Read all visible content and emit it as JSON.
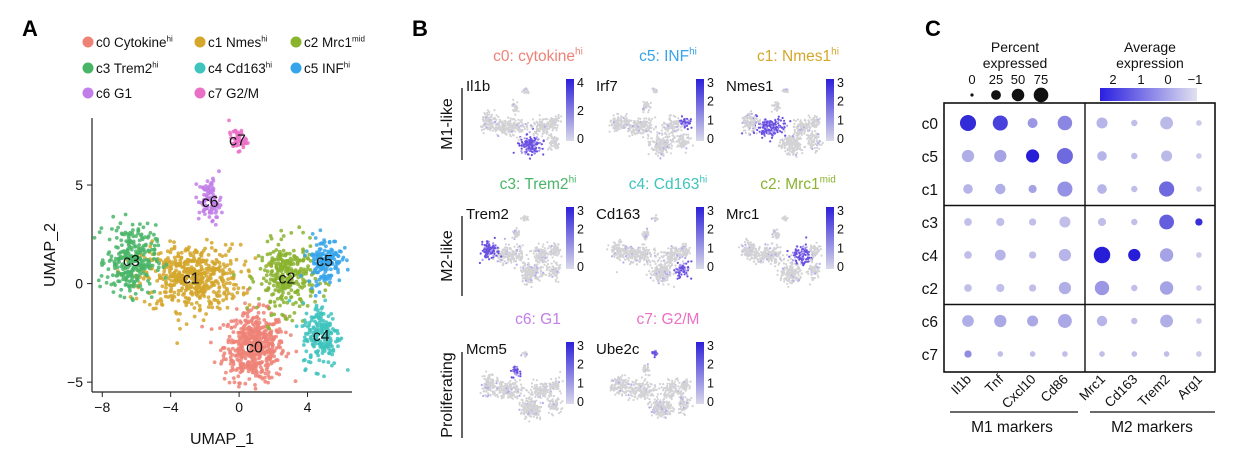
{
  "panels": {
    "A": "A",
    "B": "B",
    "C": "C"
  },
  "chart_data": [
    {
      "type": "scatter",
      "panel": "A",
      "xlabel": "UMAP_1",
      "ylabel": "UMAP_2",
      "xticks": [
        -8,
        -4,
        0,
        4
      ],
      "yticks": [
        -5,
        0,
        5
      ],
      "xlim": [
        -8.6,
        6.6
      ],
      "ylim": [
        -5.5,
        8.4
      ],
      "legend": [
        {
          "id": "c0",
          "text": "c0 Cytokine",
          "sup": "hi",
          "color": "#ee8277"
        },
        {
          "id": "c1",
          "text": "c1 Nmes",
          "sup": "hi",
          "color": "#d4a62a"
        },
        {
          "id": "c2",
          "text": "c2 Mrc1",
          "sup": "mid",
          "color": "#8ab32e"
        },
        {
          "id": "c3",
          "text": "c3 Trem2",
          "sup": "hi",
          "color": "#49b567"
        },
        {
          "id": "c4",
          "text": "c4 Cd163",
          "sup": "hi",
          "color": "#3ec3bd"
        },
        {
          "id": "c5",
          "text": "c5 INF",
          "sup": "hi",
          "color": "#36a4ea"
        },
        {
          "id": "c6",
          "text": "c6 G1",
          "sup": "",
          "color": "#c27ee8"
        },
        {
          "id": "c7",
          "text": "c7 G2/M",
          "sup": "",
          "color": "#ea70c5"
        }
      ],
      "clusters": [
        {
          "id": "c0",
          "label": "c0",
          "center": [
            0.9,
            -3.2
          ],
          "spread": [
            1.6,
            1.6
          ],
          "n": 520,
          "color": "#ee8277"
        },
        {
          "id": "c1",
          "label": "c1",
          "center": [
            -2.8,
            0.3
          ],
          "spread": [
            2.6,
            1.5
          ],
          "n": 520,
          "color": "#d4a62a"
        },
        {
          "id": "c2",
          "label": "c2",
          "center": [
            2.8,
            0.3
          ],
          "spread": [
            1.5,
            1.6
          ],
          "n": 300,
          "color": "#8ab32e"
        },
        {
          "id": "c3",
          "label": "c3",
          "center": [
            -6.3,
            1.2
          ],
          "spread": [
            1.3,
            1.6
          ],
          "n": 300,
          "color": "#49b567"
        },
        {
          "id": "c4",
          "label": "c4",
          "center": [
            4.8,
            -2.6
          ],
          "spread": [
            1.0,
            1.5
          ],
          "n": 190,
          "color": "#3ec3bd"
        },
        {
          "id": "c5",
          "label": "c5",
          "center": [
            5.0,
            1.2
          ],
          "spread": [
            0.9,
            1.1
          ],
          "n": 150,
          "color": "#36a4ea"
        },
        {
          "id": "c6",
          "label": "c6",
          "center": [
            -1.7,
            4.2
          ],
          "spread": [
            0.6,
            1.0
          ],
          "n": 90,
          "color": "#c27ee8"
        },
        {
          "id": "c7",
          "label": "c7",
          "center": [
            -0.1,
            7.3
          ],
          "spread": [
            0.45,
            0.5
          ],
          "n": 45,
          "color": "#ea70c5"
        }
      ]
    },
    {
      "type": "scatter",
      "panel": "B",
      "groups": [
        {
          "label": "M1-like",
          "titles": [
            {
              "text": "c0: cytokine",
              "sup": "hi",
              "color": "#ee8277"
            },
            {
              "text": "c5: INF",
              "sup": "hi",
              "color": "#36a4ea"
            },
            {
              "text": "c1: Nmes1",
              "sup": "hi",
              "color": "#d4a62a"
            }
          ]
        },
        {
          "label": "M2-like",
          "titles": [
            {
              "text": "c3: Trem2",
              "sup": "hi",
              "color": "#49b567"
            },
            {
              "text": "c4: Cd163",
              "sup": "hi",
              "color": "#3ec3bd"
            },
            {
              "text": "c2: Mrc1",
              "sup": "mid",
              "color": "#8ab32e"
            }
          ]
        },
        {
          "label": "Proliferating",
          "titles": [
            {
              "text": "c6: G1",
              "sup": "",
              "color": "#c27ee8"
            },
            {
              "text": "c7: G2/M",
              "sup": "",
              "color": "#ea70c5"
            }
          ]
        }
      ],
      "genes": [
        {
          "gene": "Il1b",
          "scale": [
            "4",
            "2",
            "0"
          ],
          "hot": "c0"
        },
        {
          "gene": "Irf7",
          "scale": [
            "3",
            "2",
            "1",
            "0"
          ],
          "hot": "c5"
        },
        {
          "gene": "Nmes1",
          "scale": [
            "3",
            "2",
            "1",
            "0"
          ],
          "hot": "c1"
        },
        {
          "gene": "Trem2",
          "scale": [
            "3",
            "2",
            "1",
            "0"
          ],
          "hot": "c3"
        },
        {
          "gene": "Cd163",
          "scale": [
            "3",
            "2",
            "1",
            "0"
          ],
          "hot": "c4"
        },
        {
          "gene": "Mrc1",
          "scale": [
            "3",
            "2",
            "1",
            "0"
          ],
          "hot": "c2"
        },
        {
          "gene": "Mcm5",
          "scale": [
            "3",
            "2",
            "1",
            "0"
          ],
          "hot": "c6"
        },
        {
          "gene": "Ube2c",
          "scale": [
            "3",
            "2",
            "1",
            "0"
          ],
          "hot": "c7"
        }
      ]
    },
    {
      "type": "dot",
      "panel": "C",
      "legend": {
        "size_title": [
          "Percent",
          "expressed"
        ],
        "size_ticks": [
          "0",
          "25",
          "50",
          "75"
        ],
        "color_title": [
          "Average",
          "expression"
        ],
        "color_ticks": [
          "2",
          "1",
          "0",
          "−1"
        ]
      },
      "rows": [
        "c0",
        "c5",
        "c1",
        "c3",
        "c4",
        "c2",
        "c6",
        "c7"
      ],
      "columns": [
        "Il1b",
        "Tnf",
        "Cxcl10",
        "Cd86",
        "Mrc1",
        "Cd163",
        "Trem2",
        "Arg1"
      ],
      "groups": [
        {
          "label": "M1 markers",
          "columns": [
            "Il1b",
            "Tnf",
            "Cxcl10",
            "Cd86"
          ]
        },
        {
          "label": "M2 markers",
          "columns": [
            "Mrc1",
            "Cd163",
            "Trem2",
            "Arg1"
          ]
        }
      ],
      "percent": [
        [
          80,
          68,
          22,
          62,
          30,
          5,
          45,
          3
        ],
        [
          40,
          40,
          48,
          80,
          20,
          5,
          30,
          3
        ],
        [
          20,
          25,
          12,
          68,
          20,
          5,
          70,
          3
        ],
        [
          10,
          12,
          8,
          30,
          12,
          5,
          65,
          8
        ],
        [
          10,
          28,
          8,
          40,
          85,
          40,
          50,
          3
        ],
        [
          10,
          12,
          8,
          40,
          60,
          5,
          50,
          3
        ],
        [
          35,
          40,
          30,
          55,
          25,
          5,
          45,
          3
        ],
        [
          8,
          3,
          3,
          3,
          3,
          3,
          3,
          3
        ]
      ],
      "expression": [
        [
          2.1,
          1.7,
          0.2,
          0.5,
          -0.3,
          -0.5,
          -0.4,
          -0.7
        ],
        [
          -0.2,
          0.0,
          2.3,
          1.0,
          -0.3,
          -0.5,
          -0.4,
          -0.7
        ],
        [
          -0.3,
          -0.2,
          0.0,
          0.3,
          -0.3,
          -0.5,
          1.0,
          -0.7
        ],
        [
          -0.5,
          -0.5,
          -0.5,
          -0.5,
          -0.5,
          -0.5,
          1.2,
          2.0
        ],
        [
          -0.5,
          -0.3,
          -0.5,
          -0.3,
          2.3,
          2.3,
          0.0,
          -0.7
        ],
        [
          -0.5,
          -0.5,
          -0.5,
          -0.2,
          0.2,
          -0.5,
          0.0,
          -0.7
        ],
        [
          -0.2,
          -0.1,
          -0.1,
          -0.1,
          -0.3,
          -0.5,
          -0.2,
          -0.7
        ],
        [
          0.4,
          -0.5,
          -0.5,
          -0.5,
          -0.5,
          -0.5,
          -0.5,
          -0.7
        ]
      ]
    }
  ]
}
